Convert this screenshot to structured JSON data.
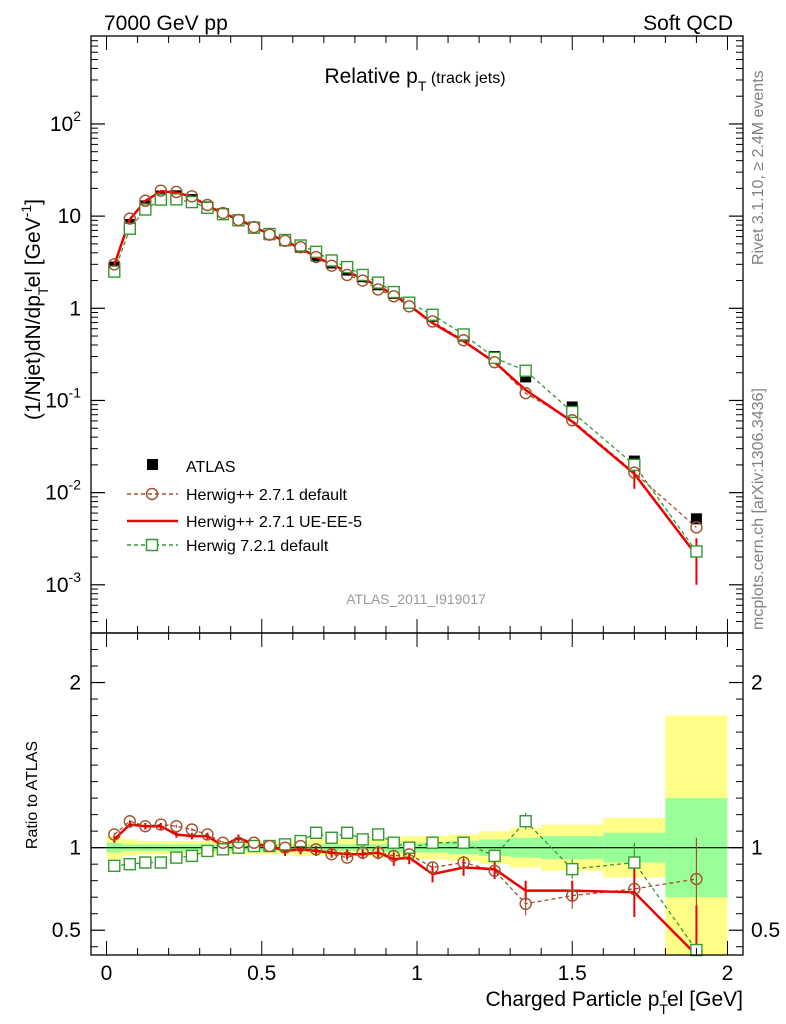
{
  "header": {
    "left": "7000 GeV pp",
    "right": "Soft QCD"
  },
  "side_labels": {
    "rivet": "Rivet 3.1.10, ≥ 2.4M events",
    "mcplots": "mcplots.cern.ch [arXiv:1306.3436]"
  },
  "watermark": "ATLAS_2011_I919017",
  "colors": {
    "data": "#000000",
    "herwig_pp_default": "#a0522d",
    "herwig_pp_ueee5": "#ee0000",
    "herwig7": "#339933",
    "band_inner": "#99ff99",
    "band_outer": "#ffff88"
  },
  "chart_data": [
    {
      "type": "scatter",
      "panel": "main",
      "title_main": "Relative p",
      "title_sub": "T",
      "title_rest": " (track jets)",
      "ylabel_parts": [
        "(1/Njet)dN/dp",
        "T",
        "r",
        "el [GeV",
        "-1",
        "]"
      ],
      "xlim": [
        -0.05,
        2.05
      ],
      "ylim": [
        0.0003,
        900
      ],
      "yscale": "log",
      "x_ticks": [
        "0",
        "0.5",
        "1",
        "1.5",
        "2"
      ],
      "y_ticks": [
        {
          "v": 0.001,
          "base": "10",
          "exp": "-3"
        },
        {
          "v": 0.01,
          "base": "10",
          "exp": "-2"
        },
        {
          "v": 0.1,
          "base": "10",
          "exp": "-1"
        },
        {
          "v": 1,
          "base": "1",
          "exp": ""
        },
        {
          "v": 10,
          "base": "10",
          "exp": ""
        },
        {
          "v": 100,
          "base": "10",
          "exp": "2"
        }
      ],
      "legend_position": "lower-left",
      "x": [
        0.025,
        0.075,
        0.125,
        0.175,
        0.225,
        0.275,
        0.325,
        0.375,
        0.425,
        0.475,
        0.525,
        0.575,
        0.625,
        0.675,
        0.725,
        0.775,
        0.825,
        0.875,
        0.925,
        0.975,
        1.05,
        1.15,
        1.25,
        1.35,
        1.5,
        1.7,
        1.9
      ],
      "series": [
        {
          "name": "ATLAS",
          "style": "data",
          "values": [
            2.8,
            8.1,
            12.9,
            16.5,
            16.6,
            15.1,
            12.6,
            10.6,
            9.0,
            7.4,
            6.3,
            5.4,
            4.6,
            3.7,
            3.1,
            2.6,
            2.2,
            1.8,
            1.45,
            1.15,
            0.82,
            0.5,
            0.3,
            0.18,
            0.085,
            0.022,
            0.0052
          ]
        },
        {
          "name": "Herwig++ 2.7.1 default",
          "style": "circle-dash",
          "values": [
            3.0,
            9.4,
            14.7,
            18.9,
            18.3,
            16.4,
            13.2,
            10.8,
            9.1,
            7.6,
            6.3,
            5.4,
            4.6,
            3.6,
            2.9,
            2.3,
            2.0,
            1.6,
            1.35,
            1.05,
            0.72,
            0.45,
            0.26,
            0.12,
            0.061,
            0.0165,
            0.0042
          ]
        },
        {
          "name": "Herwig++ 2.7.1 UE-EE-5",
          "style": "red-line",
          "values": [
            2.95,
            9.2,
            14.6,
            18.6,
            18.0,
            16.2,
            13.0,
            10.7,
            9.3,
            7.6,
            6.4,
            5.3,
            4.5,
            3.6,
            3.0,
            2.5,
            2.1,
            1.75,
            1.4,
            1.08,
            0.69,
            0.44,
            0.26,
            0.13,
            0.059,
            0.016,
            0.0021
          ]
        },
        {
          "name": "Herwig 7.2.1 default",
          "style": "square-dash",
          "values": [
            2.5,
            7.3,
            11.8,
            15.1,
            15.2,
            14.2,
            12.3,
            10.5,
            9.0,
            7.5,
            6.4,
            5.5,
            4.8,
            4.1,
            3.3,
            2.8,
            2.3,
            1.9,
            1.5,
            1.15,
            0.85,
            0.52,
            0.29,
            0.21,
            0.075,
            0.02,
            0.0023
          ]
        }
      ]
    },
    {
      "type": "scatter",
      "panel": "ratio",
      "ylabel": "Ratio to ATLAS",
      "xlabel_parts": [
        "Charged Particle p",
        "T",
        "r",
        "el [GeV]"
      ],
      "xlim": [
        -0.05,
        2.05
      ],
      "ylim": [
        0.35,
        2.3
      ],
      "y_ticks": [
        "0.5",
        "1",
        "2"
      ],
      "bin_edges": [
        0.0,
        0.05,
        0.1,
        0.15,
        0.2,
        0.25,
        0.3,
        0.35,
        0.4,
        0.45,
        0.5,
        0.55,
        0.6,
        0.65,
        0.7,
        0.75,
        0.8,
        0.85,
        0.9,
        0.95,
        1.0,
        1.1,
        1.2,
        1.3,
        1.4,
        1.6,
        1.8,
        2.0
      ],
      "band_inner": [
        0.03,
        0.02,
        0.02,
        0.02,
        0.02,
        0.02,
        0.02,
        0.02,
        0.02,
        0.02,
        0.02,
        0.02,
        0.02,
        0.02,
        0.02,
        0.02,
        0.02,
        0.02,
        0.03,
        0.03,
        0.03,
        0.04,
        0.05,
        0.06,
        0.07,
        0.09,
        0.3
      ],
      "band_outer": [
        0.07,
        0.05,
        0.04,
        0.04,
        0.04,
        0.04,
        0.04,
        0.04,
        0.04,
        0.04,
        0.04,
        0.04,
        0.05,
        0.05,
        0.05,
        0.05,
        0.05,
        0.06,
        0.06,
        0.07,
        0.07,
        0.08,
        0.1,
        0.12,
        0.14,
        0.18,
        0.8
      ],
      "x": [
        0.025,
        0.075,
        0.125,
        0.175,
        0.225,
        0.275,
        0.325,
        0.375,
        0.425,
        0.475,
        0.525,
        0.575,
        0.625,
        0.675,
        0.725,
        0.775,
        0.825,
        0.875,
        0.925,
        0.975,
        1.05,
        1.15,
        1.25,
        1.35,
        1.5,
        1.7,
        1.9
      ],
      "series": [
        {
          "name": "Herwig++ 2.7.1 default",
          "style": "circle-dash",
          "values": [
            1.08,
            1.16,
            1.13,
            1.14,
            1.13,
            1.11,
            1.08,
            1.03,
            1.03,
            1.03,
            1.01,
            1.0,
            1.01,
            0.99,
            0.96,
            0.94,
            0.97,
            0.97,
            0.95,
            0.96,
            0.88,
            0.91,
            0.86,
            0.66,
            0.71,
            0.75,
            0.81
          ],
          "errors": [
            0.01,
            0.01,
            0.01,
            0.01,
            0.01,
            0.01,
            0.01,
            0.01,
            0.01,
            0.01,
            0.01,
            0.01,
            0.02,
            0.02,
            0.02,
            0.02,
            0.02,
            0.03,
            0.03,
            0.03,
            0.03,
            0.04,
            0.05,
            0.07,
            0.08,
            0.12,
            0.25
          ]
        },
        {
          "name": "Herwig++ 2.7.1 UE-EE-5",
          "style": "red-line",
          "values": [
            1.05,
            1.14,
            1.13,
            1.13,
            1.08,
            1.07,
            1.07,
            1.01,
            1.06,
            1.02,
            1.01,
            0.98,
            0.99,
            0.98,
            0.97,
            0.96,
            0.96,
            0.97,
            0.93,
            0.94,
            0.84,
            0.88,
            0.87,
            0.74,
            0.74,
            0.73,
            0.35
          ],
          "errors": [
            0.02,
            0.02,
            0.02,
            0.02,
            0.02,
            0.02,
            0.02,
            0.02,
            0.02,
            0.02,
            0.02,
            0.03,
            0.03,
            0.03,
            0.03,
            0.03,
            0.03,
            0.04,
            0.04,
            0.04,
            0.05,
            0.05,
            0.06,
            0.06,
            0.06,
            0.15,
            0.3
          ]
        },
        {
          "name": "Herwig 7.2.1 default",
          "style": "square-dash",
          "values": [
            0.89,
            0.9,
            0.91,
            0.91,
            0.94,
            0.95,
            0.98,
            0.99,
            1.0,
            1.01,
            1.01,
            1.02,
            1.04,
            1.09,
            1.06,
            1.09,
            1.05,
            1.08,
            1.03,
            1.0,
            1.03,
            1.03,
            0.95,
            1.16,
            0.87,
            0.91,
            0.38
          ],
          "errors": [
            0.01,
            0.01,
            0.01,
            0.01,
            0.01,
            0.01,
            0.01,
            0.01,
            0.01,
            0.01,
            0.01,
            0.01,
            0.01,
            0.01,
            0.01,
            0.01,
            0.01,
            0.02,
            0.02,
            0.02,
            0.02,
            0.03,
            0.04,
            0.05,
            0.06,
            0.12,
            0.25
          ]
        }
      ]
    }
  ]
}
